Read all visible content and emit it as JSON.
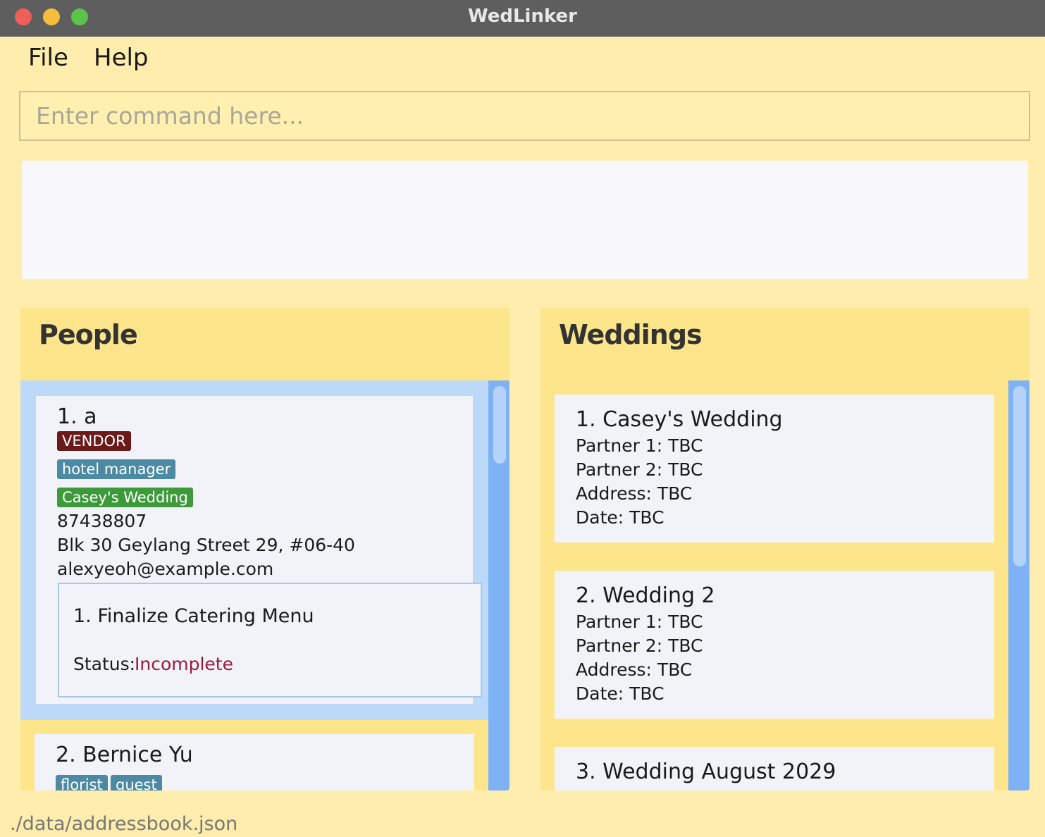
{
  "window": {
    "title": "WedLinker"
  },
  "menu": [
    "File",
    "Help"
  ],
  "command": {
    "placeholder": "Enter command here..."
  },
  "people": {
    "title": "People",
    "items": [
      {
        "name": "1. a",
        "tags": [
          "VENDOR",
          "hotel manager",
          "Casey's Wedding"
        ],
        "phone": "87438807",
        "address": "Blk 30 Geylang Street 29, #06-40",
        "email": "alexyeoh@example.com",
        "task": {
          "title": "1.  Finalize Catering Menu",
          "status_label": "Status:",
          "status": "Incomplete"
        }
      },
      {
        "name": "2. Bernice Yu",
        "tags": [
          "florist",
          "guest"
        ]
      }
    ]
  },
  "weddings": {
    "title": "Weddings",
    "items": [
      {
        "name": "1. Casey's Wedding",
        "fields": [
          "Partner 1: TBC",
          "Partner 2: TBC",
          "Address: TBC",
          "Date: TBC"
        ]
      },
      {
        "name": "2. Wedding 2",
        "fields": [
          "Partner 1: TBC",
          "Partner 2: TBC",
          "Address: TBC",
          "Date: TBC"
        ]
      },
      {
        "name": "3. Wedding August 2029"
      }
    ]
  },
  "status_bar": "./data/addressbook.json"
}
